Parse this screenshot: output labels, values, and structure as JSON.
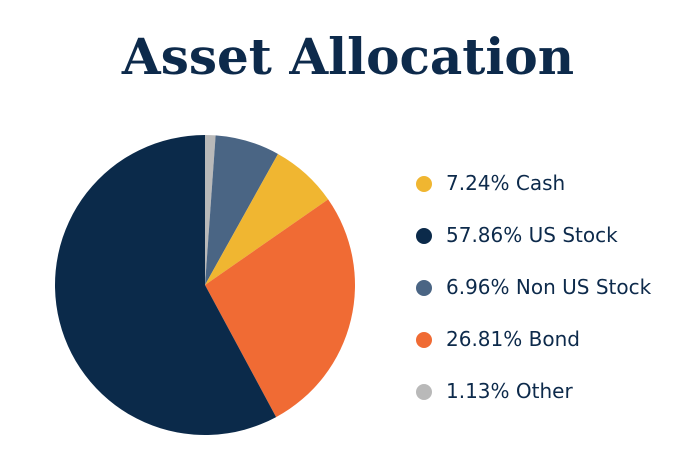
{
  "chart_data": {
    "type": "pie",
    "title": "Asset Allocation",
    "categories": [
      "Cash",
      "US Stock",
      "Non US Stock",
      "Bond",
      "Other"
    ],
    "values": [
      7.24,
      57.86,
      6.96,
      26.81,
      1.13
    ],
    "value_labels": [
      "7.24%",
      "57.86%",
      "6.96%",
      "26.81%",
      "1.13%"
    ],
    "colors": [
      "#f0b631",
      "#0b2a4a",
      "#4a6584",
      "#f06b34",
      "#b9b9b9"
    ],
    "legend": "right"
  }
}
